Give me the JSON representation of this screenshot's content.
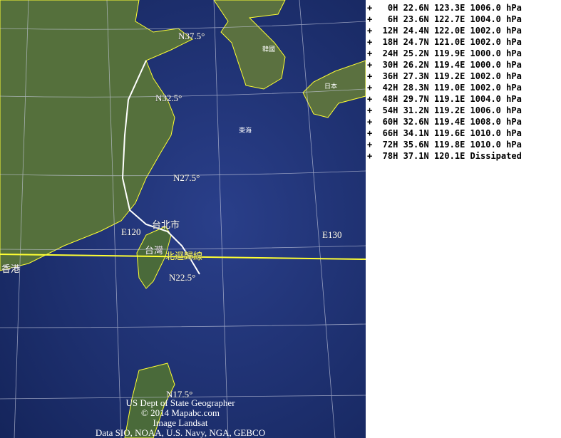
{
  "map": {
    "grid_labels": {
      "n37_5": "N37.5°",
      "n32_5": "N32.5°",
      "n27_5": "N27.5°",
      "n22_5": "N22.5°",
      "n17_5": "N17.5°",
      "e120": "E120",
      "e130": "E130"
    },
    "place_labels": {
      "taipei": "台北市",
      "taiwan": "台灣",
      "tropic": "北迴歸線",
      "hongkong": "香港",
      "east_china_sea": "東海",
      "korea": "韓國",
      "japan": "日本"
    },
    "credits": [
      "US Dept of State Geographer",
      "© 2014 Mapabc.com",
      "Image Landsat",
      "Data SIO, NOAA, U.S. Navy, NGA, GEBCO"
    ],
    "colors": {
      "ocean": "#1d2f6e",
      "land": "#4f6a3a",
      "track": "#ffffff",
      "coast": "#ffff33",
      "tropic_line": "#ffff33"
    }
  },
  "track": [
    {
      "hour": "0H",
      "lat": "22.6N",
      "lon": "123.3E",
      "status": "1006.0 hPa"
    },
    {
      "hour": "6H",
      "lat": "23.6N",
      "lon": "122.7E",
      "status": "1004.0 hPa"
    },
    {
      "hour": "12H",
      "lat": "24.4N",
      "lon": "122.0E",
      "status": "1002.0 hPa"
    },
    {
      "hour": "18H",
      "lat": "24.7N",
      "lon": "121.0E",
      "status": "1002.0 hPa"
    },
    {
      "hour": "24H",
      "lat": "25.2N",
      "lon": "119.9E",
      "status": "1000.0 hPa"
    },
    {
      "hour": "30H",
      "lat": "26.2N",
      "lon": "119.4E",
      "status": "1000.0 hPa"
    },
    {
      "hour": "36H",
      "lat": "27.3N",
      "lon": "119.2E",
      "status": "1002.0 hPa"
    },
    {
      "hour": "42H",
      "lat": "28.3N",
      "lon": "119.0E",
      "status": "1002.0 hPa"
    },
    {
      "hour": "48H",
      "lat": "29.7N",
      "lon": "119.1E",
      "status": "1004.0 hPa"
    },
    {
      "hour": "54H",
      "lat": "31.2N",
      "lon": "119.2E",
      "status": "1006.0 hPa"
    },
    {
      "hour": "60H",
      "lat": "32.6N",
      "lon": "119.4E",
      "status": "1008.0 hPa"
    },
    {
      "hour": "66H",
      "lat": "34.1N",
      "lon": "119.6E",
      "status": "1010.0 hPa"
    },
    {
      "hour": "72H",
      "lat": "35.6N",
      "lon": "119.8E",
      "status": "1010.0 hPa"
    },
    {
      "hour": "78H",
      "lat": "37.1N",
      "lon": "120.1E",
      "status": "Dissipated"
    }
  ]
}
